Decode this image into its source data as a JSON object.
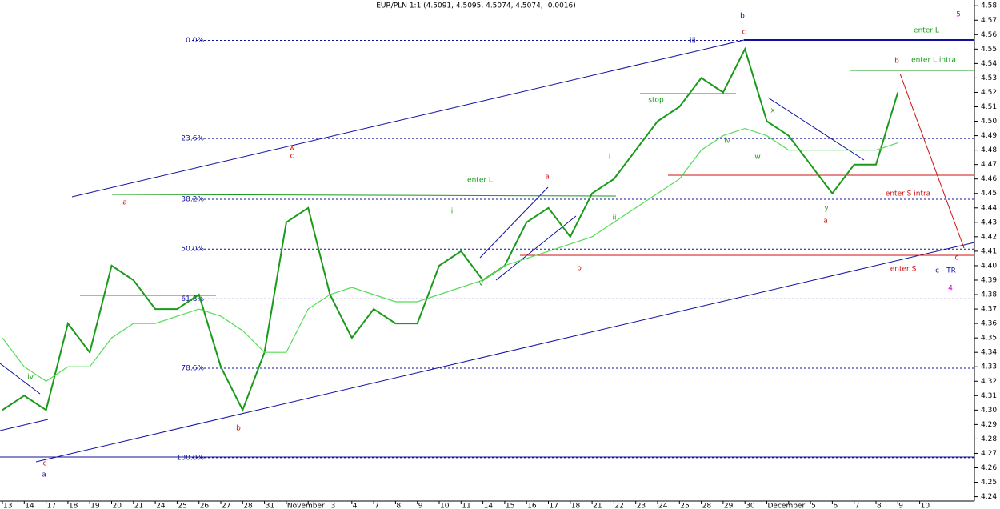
{
  "chart_data": {
    "type": "line",
    "title": "EUR/PLN 1:1 (4.5091, 4.5095, 4.5074, 4.5074, -0.0016)",
    "categories": [
      "13",
      "14",
      "17",
      "18",
      "19",
      "20",
      "21",
      "24",
      "25",
      "26",
      "27",
      "28",
      "31",
      "November",
      null,
      "3",
      "4",
      "7",
      "8",
      "9",
      "10",
      "11",
      "14",
      "15",
      "16",
      "17",
      "18",
      "21",
      "22",
      "23",
      "24",
      "25",
      "28",
      "29",
      "30",
      "December",
      null,
      "5",
      "6",
      "7",
      "8",
      "9",
      "10"
    ],
    "series": [
      {
        "color": "#1a9a1a",
        "values": [
          4.3,
          4.31,
          4.3,
          4.36,
          4.34,
          4.4,
          4.39,
          4.37,
          4.37,
          4.38,
          4.33,
          4.3,
          4.34,
          4.43,
          4.44,
          4.38,
          4.35,
          4.37,
          4.36,
          4.36,
          4.4,
          4.41,
          4.39,
          4.4,
          4.43,
          4.44,
          4.42,
          4.45,
          4.46,
          4.48,
          4.5,
          4.51,
          4.53,
          4.52,
          4.55,
          4.5,
          4.49,
          4.47,
          4.45,
          4.47,
          4.47,
          4.52,
          null
        ]
      },
      {
        "color": "#55dd55",
        "values": [
          4.35,
          4.33,
          4.32,
          4.33,
          4.33,
          4.35,
          4.36,
          4.36,
          4.365,
          4.37,
          4.365,
          4.355,
          4.34,
          4.34,
          4.37,
          4.38,
          4.385,
          4.38,
          4.375,
          4.375,
          4.38,
          4.385,
          4.39,
          4.4,
          4.405,
          4.41,
          4.415,
          4.42,
          4.43,
          4.44,
          4.45,
          4.46,
          4.48,
          4.49,
          4.495,
          4.49,
          4.48,
          4.48,
          4.48,
          4.48,
          4.48,
          4.485,
          null
        ]
      }
    ],
    "ylim": [
      4.237,
      4.584
    ],
    "yticks": [
      4.24,
      4.25,
      4.26,
      4.27,
      4.28,
      4.29,
      {
        "value": 4.3,
        "label": "4.30"
      },
      4.31,
      4.32,
      4.33,
      4.34,
      4.35,
      4.36,
      4.37,
      4.38,
      4.39,
      {
        "value": 4.4,
        "label": "4.40"
      },
      4.41,
      4.42,
      4.43,
      4.44,
      4.45,
      4.46,
      4.47,
      4.48,
      4.49,
      {
        "value": 4.5,
        "label": "4.50"
      },
      4.51,
      4.52,
      4.53,
      4.54,
      4.55,
      4.56,
      4.57,
      4.58
    ],
    "fib_levels": [
      {
        "label": "0.0%",
        "value": 4.556
      },
      {
        "label": "23.6%",
        "value": 4.488
      },
      {
        "label": "38.2%",
        "value": 4.446
      },
      {
        "label": "50.0%",
        "value": 4.4115
      },
      {
        "label": "61.8%",
        "value": 4.377
      },
      {
        "label": "78.6%",
        "value": 4.329
      },
      {
        "label": "100.0%",
        "value": 4.267
      }
    ],
    "annotations": [
      "b",
      "c",
      "iii",
      "5",
      "enter L",
      "enter L intra",
      "b",
      "stop",
      "x",
      "iv",
      "w",
      "w",
      "c",
      "a",
      "enter L",
      "a",
      "i",
      "iii",
      "ii",
      "enter S  intra",
      "y",
      "a",
      "b",
      "enter S",
      "c - TR",
      "4",
      "iv",
      "iv",
      "b",
      "c",
      "a",
      "c"
    ]
  }
}
